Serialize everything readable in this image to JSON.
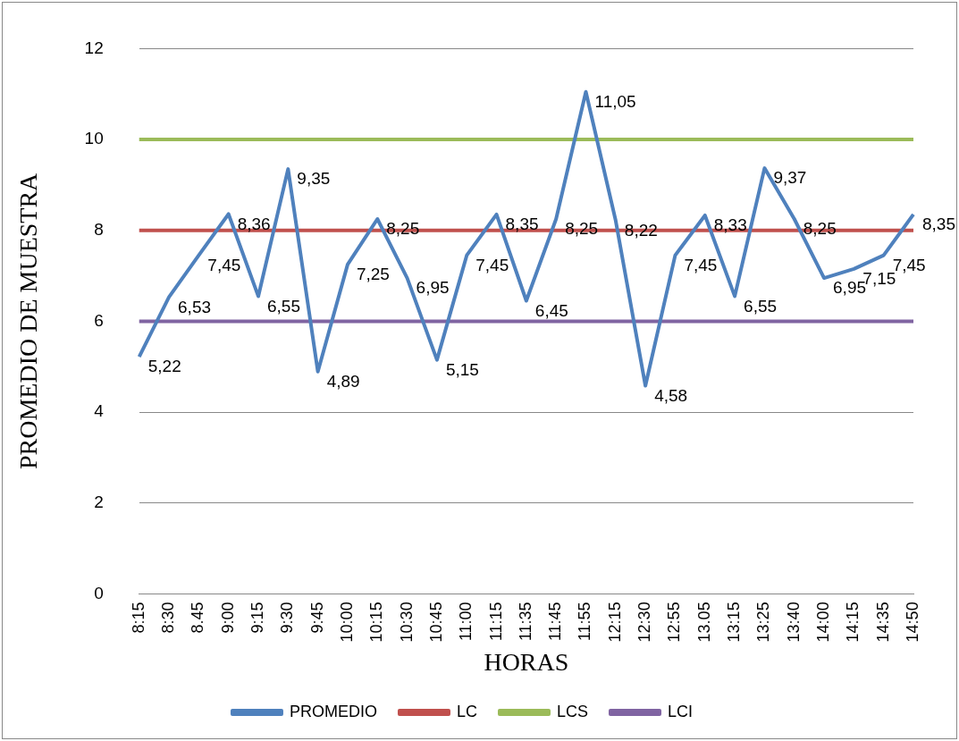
{
  "chart_data": {
    "type": "line",
    "xlabel": "HORAS",
    "ylabel": "PROMEDIO DE MUESTRA",
    "categories": [
      "8:15",
      "8:30",
      "8.45",
      "9:00",
      "9:15",
      "9:30",
      "9:45",
      "10:00",
      "10:15",
      "10:30",
      "10:45",
      "11:00",
      "11:15",
      "11:35",
      "11:45",
      "11:55",
      "12:15",
      "12:30",
      "12:55",
      "13.05",
      "13:15",
      "13:25",
      "13:40",
      "14:00",
      "14:15",
      "14:35",
      "14:50"
    ],
    "series": [
      {
        "name": "PROMEDIO",
        "color": "#4f81bd",
        "values": [
          5.22,
          6.53,
          7.45,
          8.36,
          6.55,
          9.35,
          4.89,
          7.25,
          8.25,
          6.95,
          5.15,
          7.45,
          8.35,
          6.45,
          8.25,
          11.05,
          8.22,
          4.58,
          7.45,
          8.33,
          6.55,
          9.37,
          8.25,
          6.95,
          7.15,
          7.45,
          8.35
        ],
        "value_labels": [
          "5,22",
          "6,53",
          "7,45",
          "8,36",
          "6,55",
          "9,35",
          "4,89",
          "7,25",
          "8,25",
          "6,95",
          "5,15",
          "7,45",
          "8,35",
          "6,45",
          "8,25",
          "11,05",
          "8,22",
          "4,58",
          "7,45",
          "8,33",
          "6,55",
          "9,37",
          "8,25",
          "6,95",
          "7,15",
          "7,45",
          "8,35"
        ]
      },
      {
        "name": "LC",
        "color": "#c0504d",
        "values": [
          8,
          8,
          8,
          8,
          8,
          8,
          8,
          8,
          8,
          8,
          8,
          8,
          8,
          8,
          8,
          8,
          8,
          8,
          8,
          8,
          8,
          8,
          8,
          8,
          8,
          8,
          8
        ]
      },
      {
        "name": "LCS",
        "color": "#9bbb59",
        "values": [
          10,
          10,
          10,
          10,
          10,
          10,
          10,
          10,
          10,
          10,
          10,
          10,
          10,
          10,
          10,
          10,
          10,
          10,
          10,
          10,
          10,
          10,
          10,
          10,
          10,
          10,
          10
        ]
      },
      {
        "name": "LCI",
        "color": "#8064a2",
        "values": [
          6,
          6,
          6,
          6,
          6,
          6,
          6,
          6,
          6,
          6,
          6,
          6,
          6,
          6,
          6,
          6,
          6,
          6,
          6,
          6,
          6,
          6,
          6,
          6,
          6,
          6,
          6
        ]
      }
    ],
    "ylim": [
      0,
      12
    ],
    "yticks": [
      0,
      2,
      4,
      6,
      8,
      10,
      12
    ],
    "grid": "y",
    "legend": "bottom",
    "marker": "none",
    "line_style": "solid"
  }
}
